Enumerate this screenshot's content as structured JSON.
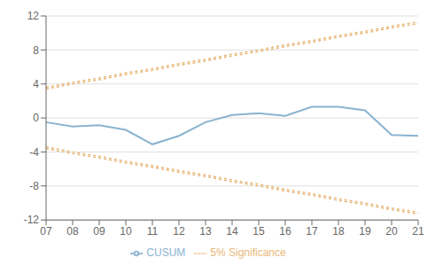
{
  "chart_data": {
    "type": "line",
    "categories": [
      "07",
      "08",
      "09",
      "10",
      "11",
      "12",
      "13",
      "14",
      "15",
      "16",
      "17",
      "18",
      "19",
      "20",
      "21"
    ],
    "series": [
      {
        "name": "CUSUM",
        "color": "#8ab4d0",
        "line_style": "solid",
        "values": [
          -0.5,
          -1.0,
          -0.85,
          -1.4,
          -3.1,
          -2.1,
          -0.5,
          0.35,
          0.55,
          0.25,
          1.3,
          1.3,
          0.9,
          -2.0,
          -2.1
        ]
      },
      {
        "name": "5% Significance",
        "color": "#e8b87a",
        "line_style": "dashed",
        "values": [
          3.4,
          4.0,
          4.5,
          5.1,
          5.6,
          6.2,
          6.7,
          7.3,
          7.8,
          8.4,
          8.9,
          9.5,
          10.0,
          10.6,
          11.1
        ]
      },
      {
        "name": "5% Significance",
        "color": "#e8b87a",
        "line_style": "dashed",
        "values": [
          3.6,
          4.2,
          4.7,
          5.3,
          5.8,
          6.4,
          6.9,
          7.5,
          8.0,
          8.6,
          9.1,
          9.7,
          10.2,
          10.8,
          11.3
        ]
      },
      {
        "name": "5% Significance",
        "color": "#e8b87a",
        "line_style": "dashed",
        "values": [
          -3.4,
          -4.0,
          -4.5,
          -5.1,
          -5.6,
          -6.2,
          -6.7,
          -7.3,
          -7.8,
          -8.4,
          -8.9,
          -9.5,
          -10.0,
          -10.6,
          -11.1
        ]
      },
      {
        "name": "5% Significance",
        "color": "#e8b87a",
        "line_style": "dashed",
        "values": [
          -3.6,
          -4.2,
          -4.7,
          -5.3,
          -5.8,
          -6.4,
          -6.9,
          -7.5,
          -8.0,
          -8.6,
          -9.1,
          -9.7,
          -10.2,
          -10.8,
          -11.3
        ]
      }
    ],
    "ylim": [
      -12,
      12
    ],
    "yticks": [
      -12,
      -8,
      -4,
      0,
      4,
      8,
      12
    ],
    "grid": true,
    "legend": "bottom"
  }
}
